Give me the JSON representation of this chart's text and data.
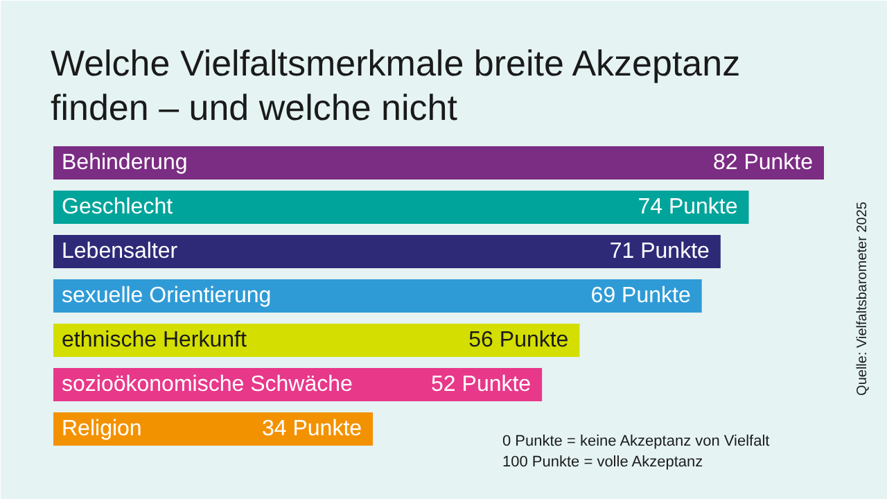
{
  "chart_data": {
    "type": "bar",
    "orientation": "horizontal",
    "title": "Welche Vielfaltsmerkmale breite Akzeptanz finden – und welche nicht",
    "categories": [
      "Behinderung",
      "Geschlecht",
      "Lebensalter",
      "sexuelle Orientierung",
      "ethnische Herkunft",
      "sozioökonomische Schwäche",
      "Religion"
    ],
    "values": [
      82,
      74,
      71,
      69,
      56,
      52,
      34
    ],
    "value_labels": [
      "82 Punkte",
      "74 Punkte",
      "71 Punkte",
      "69 Punkte",
      "56 Punkte",
      "52 Punkte",
      "34 Punkte"
    ],
    "colors": [
      "#7b2c83",
      "#00a49a",
      "#2e2a78",
      "#2f9bd6",
      "#d4de00",
      "#e8388a",
      "#f39200"
    ],
    "annotations": [
      "0 Punkte = keine Akzeptanz von Vielfalt",
      "100 Punkte = volle Akzeptanz",
      "Quelle: Vielfaltsbarometer 2025"
    ]
  }
}
